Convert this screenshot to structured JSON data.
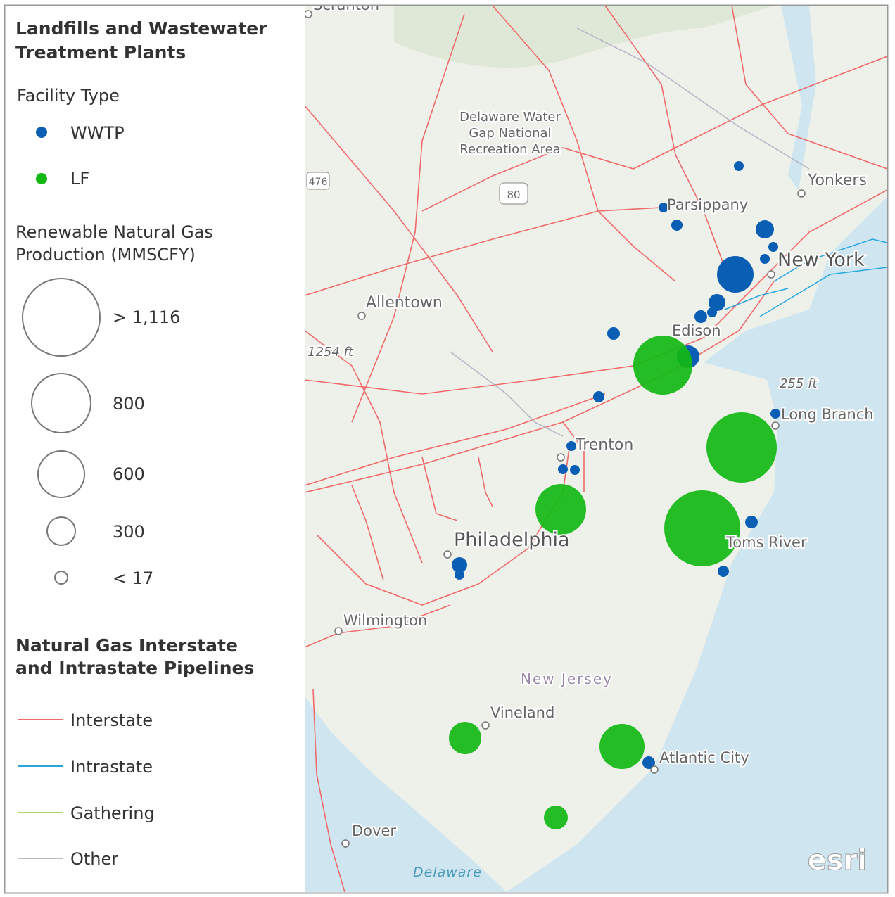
{
  "legend": {
    "title": "Landfills and Wastewater Treatment Plants",
    "facility_type": {
      "title": "Facility Type",
      "items": [
        "WWTP",
        "LF"
      ]
    },
    "production": {
      "title": "Renewable Natural Gas Production (MMSCFY)",
      "sizes": [
        "> 1,116",
        "800",
        "600",
        "300",
        "< 17"
      ]
    },
    "pipelines": {
      "title": "Natural Gas Interstate and Intrastate Pipelines",
      "items": [
        "Interstate",
        "Intrastate",
        "Gathering",
        "Other"
      ]
    }
  },
  "map": {
    "labels": [
      "Scranton",
      "Delaware Water",
      "Gap National",
      "Recreation Area",
      "476",
      "80",
      "Parsippany",
      "Yonkers",
      "New York",
      "Allentown",
      "1254 ft",
      "Edison",
      "255 ft",
      "Long Branch",
      "Trenton",
      "Philadelphia",
      "Toms River",
      "Wilmington",
      "New Jersey",
      "Vineland",
      "Atlantic City",
      "Dover",
      "Delaware"
    ],
    "attribution": "esri"
  }
}
